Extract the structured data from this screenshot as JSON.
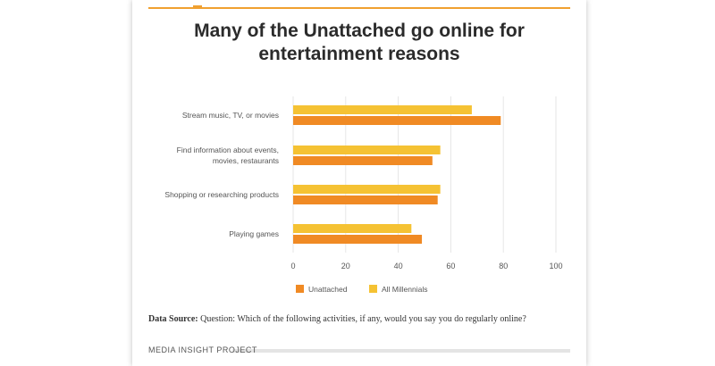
{
  "colors": {
    "unattached": "#f08a24",
    "all_millennials": "#f5c233",
    "accent": "#f0a030",
    "grid": "#e6e6e6",
    "text": "#555555"
  },
  "chart_data": {
    "type": "bar",
    "orientation": "horizontal",
    "title": "Many of the Unattached go online for entertainment reasons",
    "categories": [
      "Stream music, TV, or movies",
      "Find information about events, movies, restaurants",
      "Shopping or researching products",
      "Playing games"
    ],
    "category_lines": [
      [
        "Stream music, TV, or movies"
      ],
      [
        "Find information about events,",
        "movies, restaurants"
      ],
      [
        "Shopping or researching products"
      ],
      [
        "Playing games"
      ]
    ],
    "series": [
      {
        "name": "All Millennials",
        "values": [
          68,
          56,
          56,
          45
        ]
      },
      {
        "name": "Unattached",
        "values": [
          79,
          53,
          55,
          49
        ]
      }
    ],
    "legend_order": [
      "Unattached",
      "All Millennials"
    ],
    "xlim": [
      0,
      100
    ],
    "xticks": [
      0,
      20,
      40,
      60,
      80,
      100
    ],
    "grid": true,
    "legend_position": "bottom"
  },
  "source": {
    "label": "Data Source:",
    "text": "Question: Which of the following activities, if any, would you say you do regularly online?"
  },
  "footer": {
    "text": "MEDIA INSIGHT PROJECT"
  }
}
